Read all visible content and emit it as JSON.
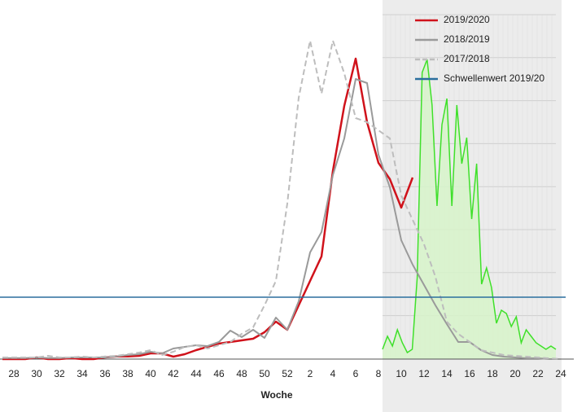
{
  "chart_data": {
    "type": "line",
    "x_label": "Woche",
    "categories": [
      null,
      "28",
      null,
      "30",
      null,
      "32",
      null,
      "34",
      null,
      "36",
      null,
      "38",
      null,
      "40",
      null,
      "42",
      null,
      "44",
      null,
      "46",
      null,
      "48",
      null,
      "50",
      null,
      "52",
      null,
      "2",
      null,
      "4",
      null,
      "6",
      null,
      "8",
      null,
      "10",
      null,
      "12",
      null,
      "14",
      null,
      "16",
      null,
      "18",
      null,
      "20",
      null,
      "22",
      null,
      "24"
    ],
    "ylim": [
      0,
      100
    ],
    "series": [
      {
        "name": "2019/2020",
        "color": "#d0121b",
        "dash": false,
        "values": [
          0,
          0,
          0,
          0.5,
          0,
          0,
          0.3,
          0,
          0,
          0.5,
          0.8,
          0.8,
          1,
          1.75,
          1.75,
          0.75,
          1.5,
          2.75,
          3.75,
          4.75,
          5.25,
          5.75,
          6.25,
          8.25,
          11.5,
          9,
          16.5,
          24,
          31.5,
          57.75,
          77.75,
          92.25,
          72.75,
          60.25,
          55.25,
          46.5,
          55.75,
          null,
          null,
          null,
          null,
          null,
          null,
          null,
          null,
          null,
          null,
          null,
          null,
          null
        ]
      },
      {
        "name": "2018/2019",
        "color": "#9a9a9a",
        "dash": false,
        "values": [
          0.3,
          0.3,
          0.3,
          0.5,
          0.3,
          0.3,
          0.5,
          0.5,
          0.5,
          0.5,
          0.8,
          1.25,
          1.5,
          2.25,
          1.75,
          3.25,
          3.75,
          4.25,
          4,
          5.25,
          8.75,
          6.75,
          9,
          6.5,
          12.75,
          9,
          17.75,
          32.75,
          39,
          56.5,
          67.75,
          86,
          84.75,
          62.75,
          52.75,
          36.5,
          29,
          22.75,
          16.5,
          10.75,
          5.25,
          5.25,
          2.75,
          1.25,
          0.75,
          0.5,
          0.25,
          0.25,
          0,
          0
        ]
      },
      {
        "name": "2017/2018",
        "color": "#bdbdbd",
        "dash": true,
        "values": [
          0.5,
          0.5,
          0.5,
          0.5,
          1,
          0.5,
          0.5,
          0.8,
          0.5,
          0.8,
          1,
          1.5,
          2,
          2.75,
          1.25,
          2.25,
          3.75,
          4.25,
          3.25,
          4.25,
          5.25,
          7.75,
          9.75,
          16.5,
          24,
          47.75,
          80.25,
          97.75,
          81.5,
          97.75,
          87.75,
          74,
          72.75,
          70.25,
          67.75,
          50.25,
          42.75,
          35.25,
          25.25,
          11.5,
          7.75,
          5.25,
          2.75,
          2,
          1.25,
          1,
          0.75,
          0.5,
          0.25,
          0
        ]
      }
    ],
    "threshold": {
      "name": "Schwellenwert 2019/20",
      "color": "#2b6f9e",
      "value": 19
    },
    "overlay": {
      "color": "#3fe02a",
      "fill": "#d6f5c8",
      "values": [
        3,
        7,
        4,
        9,
        5,
        2,
        3,
        25,
        88,
        92,
        78,
        47,
        72,
        80,
        47,
        78,
        60,
        68,
        43,
        60,
        23,
        28,
        22,
        11,
        15,
        14,
        10,
        13,
        5,
        9,
        7,
        5,
        4,
        3,
        4,
        3
      ]
    }
  }
}
